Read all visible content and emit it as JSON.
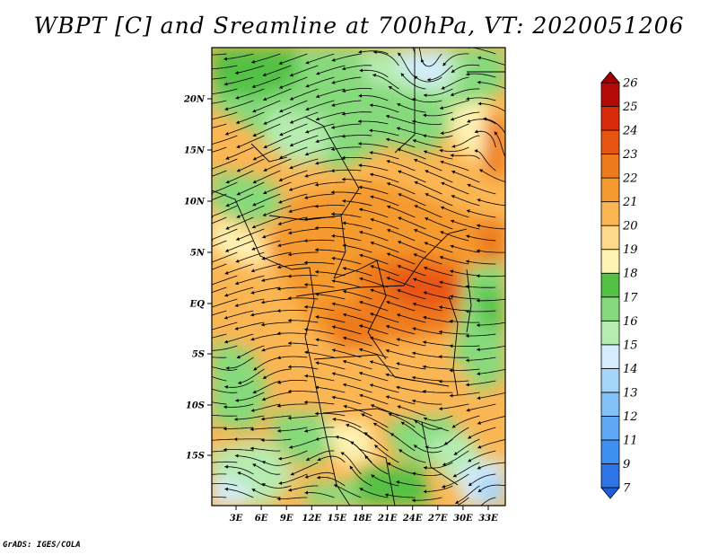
{
  "title": "WBPT [C] and Sreamline at 700hPa, VT: 2020051206",
  "credit": "GrADS: IGES/COLA",
  "lat_labels": [
    "20N",
    "15N",
    "10N",
    "5N",
    "EQ",
    "5S",
    "10S",
    "15S"
  ],
  "lon_labels": [
    "3E",
    "6E",
    "9E",
    "12E",
    "15E",
    "18E",
    "21E",
    "24E",
    "27E",
    "30E",
    "33E"
  ],
  "colorbar": {
    "labels": [
      "7",
      "9",
      "11",
      "12",
      "13",
      "14",
      "15",
      "16",
      "17",
      "18",
      "19",
      "20",
      "21",
      "22",
      "23",
      "24",
      "25",
      "26"
    ],
    "colors": [
      "#1e5fd8",
      "#2d74e6",
      "#3f8ff0",
      "#5ea8f5",
      "#82c0f8",
      "#a6d5fa",
      "#d4ecfd",
      "#b6ecb0",
      "#86da7c",
      "#52c144",
      "#fff2b3",
      "#ffd98a",
      "#fbb654",
      "#f59a2e",
      "#ee7a1e",
      "#e85512",
      "#d92a0a",
      "#b40a06",
      "#a00000"
    ]
  }
}
